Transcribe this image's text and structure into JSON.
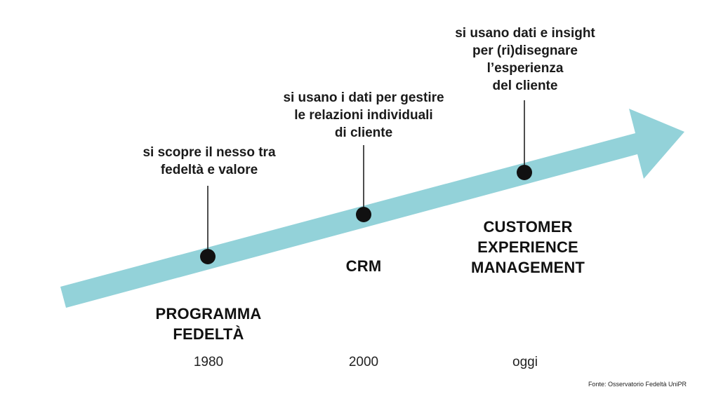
{
  "colors": {
    "arrow": "#93d2d9",
    "dot": "#111111",
    "line": "#222222"
  },
  "milestones": [
    {
      "year": "1980",
      "stage": "PROGRAMMA\nFEDELTÀ",
      "note": "si scopre il nesso tra\nfedeltà e valore"
    },
    {
      "year": "2000",
      "stage": "CRM",
      "note": "si usano i dati per gestire\nle relazioni individuali\ndi cliente"
    },
    {
      "year": "oggi",
      "stage": "CUSTOMER\nEXPERIENCE\nMANAGEMENT",
      "note": "si usano dati e insight\nper (ri)disegnare\nl’esperienza\ndel cliente"
    }
  ],
  "source": "Fonte: Osservatorio Fedeltà UniPR"
}
